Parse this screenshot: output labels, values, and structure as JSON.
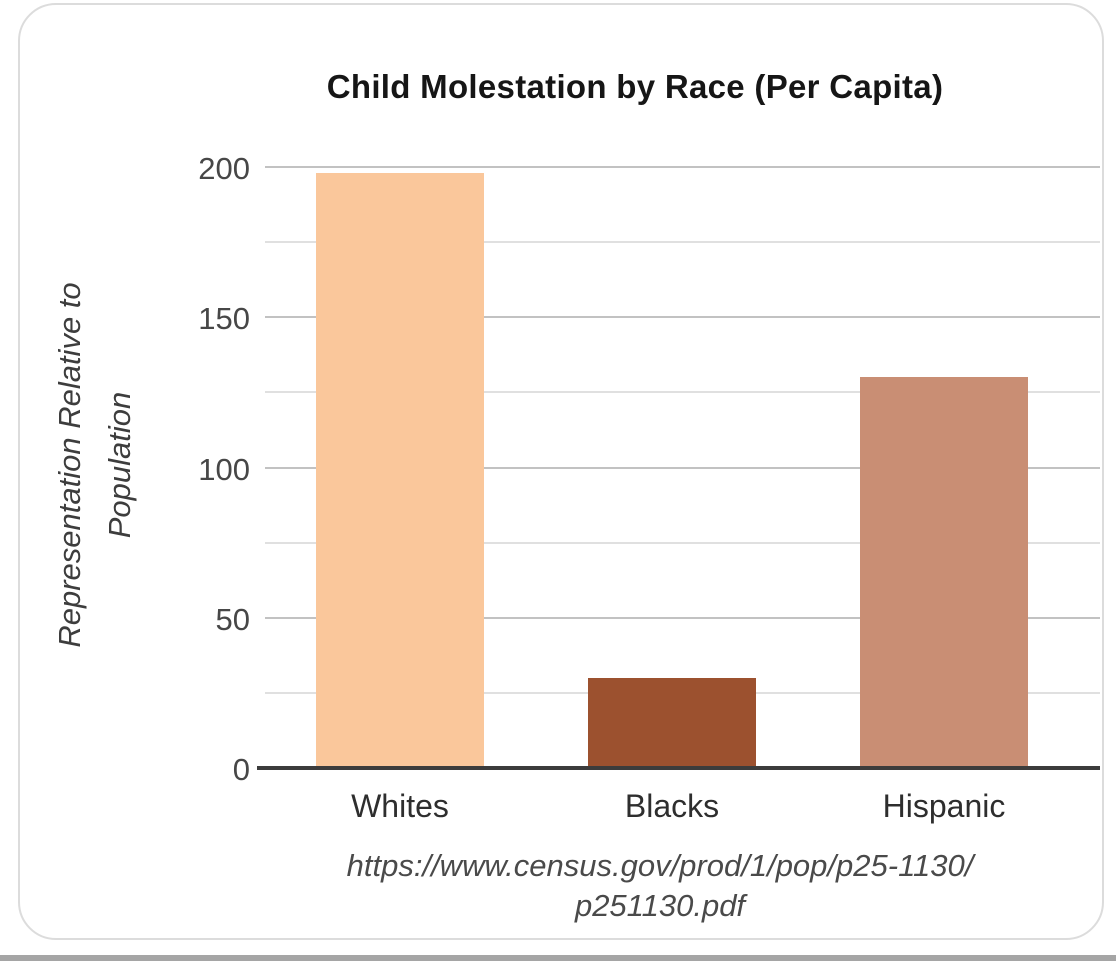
{
  "chart_data": {
    "type": "bar",
    "title": "Child Molestation by Race (Per Capita)",
    "categories": [
      "Whites",
      "Blacks",
      "Hispanic"
    ],
    "values": [
      198,
      30,
      130
    ],
    "bar_colors": [
      "#FAC79B",
      "#9C512F",
      "#C98E74"
    ],
    "ylabel": "Representation Relative to Population",
    "ylabel_lines": [
      "Representation Relative to",
      "Population"
    ],
    "xlabel": "",
    "ylim": [
      0,
      200
    ],
    "yticks": [
      0,
      50,
      100,
      150,
      200
    ],
    "ytick_step": 50,
    "gridline_step": 25,
    "grid": true,
    "legend": "none",
    "source_lines": [
      "https://www.census.gov/prod/1/pop/p25-1130/",
      "p251130.pdf"
    ],
    "source_url": "https://www.census.gov/prod/1/pop/p25-1130/p251130.pdf",
    "colors": {
      "axis_line": "#3C3C3C",
      "gridline_major": "#C2C2C2",
      "gridline_minor": "#E0E0E0",
      "card_border": "#DCDCDC",
      "title_text": "#161616",
      "tick_text": "#474747"
    }
  }
}
